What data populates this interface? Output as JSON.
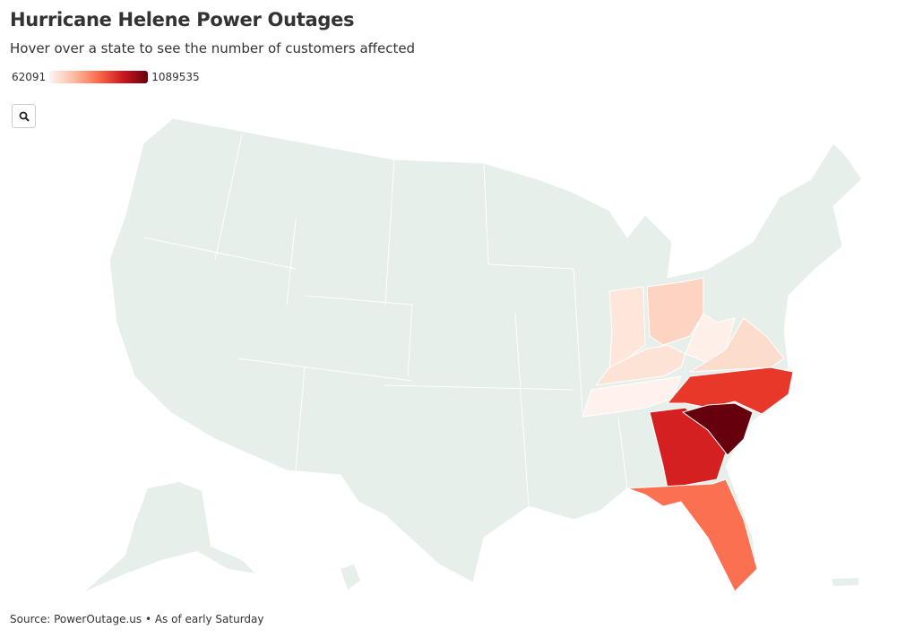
{
  "header": {
    "title": "Hurricane Helene Power Outages",
    "subtitle": "Hover over a state to see the number of customers affected"
  },
  "legend": {
    "min": 62091,
    "max": 1089535
  },
  "footer": {
    "source": "Source: PowerOutage.us • As of early Saturday"
  }
}
